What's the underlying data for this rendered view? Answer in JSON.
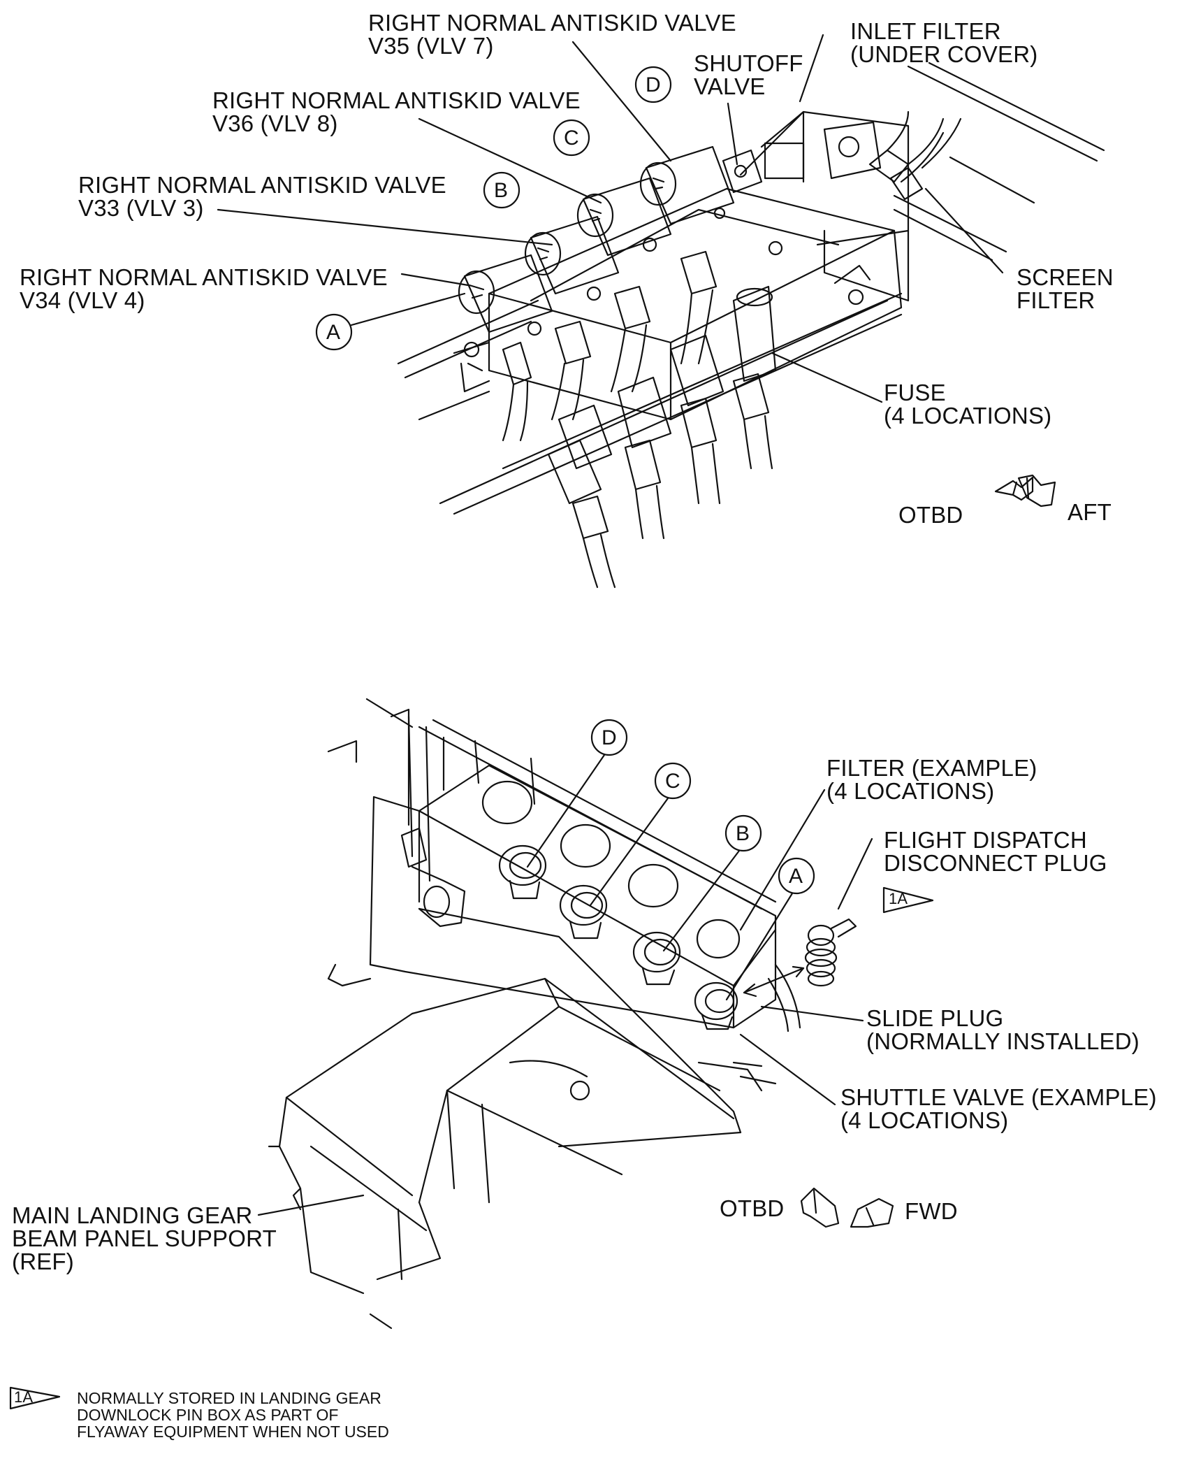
{
  "figure": {
    "top_view": {
      "labels": {
        "valve_v35": [
          "RIGHT NORMAL ANTISKID VALVE",
          "V35 (VLV 7)"
        ],
        "valve_v36": [
          "RIGHT NORMAL ANTISKID VALVE",
          "V36 (VLV 8)"
        ],
        "valve_v33": [
          "RIGHT NORMAL ANTISKID VALVE",
          "V33 (VLV 3)"
        ],
        "valve_v34": [
          "RIGHT NORMAL ANTISKID VALVE",
          "V34 (VLV 4)"
        ],
        "shutoff_valve": [
          "SHUTOFF",
          "VALVE"
        ],
        "inlet_filter": [
          "INLET FILTER",
          "(UNDER COVER)"
        ],
        "screen_filter": [
          "SCREEN",
          "FILTER"
        ],
        "fuse": [
          "FUSE",
          "(4 LOCATIONS)"
        ]
      },
      "callouts": [
        "A",
        "B",
        "C",
        "D"
      ],
      "direction": {
        "left": "OTBD",
        "right": "AFT"
      }
    },
    "bottom_view": {
      "labels": {
        "filter_example": [
          "FILTER (EXAMPLE)",
          "(4 LOCATIONS)"
        ],
        "flight_dispatch_plug": [
          "FLIGHT DISPATCH",
          "DISCONNECT PLUG"
        ],
        "slide_plug": [
          "SLIDE PLUG",
          "(NORMALLY INSTALLED)"
        ],
        "shuttle_valve": [
          "SHUTTLE VALVE (EXAMPLE)",
          "(4 LOCATIONS)"
        ],
        "beam_panel_support": [
          "MAIN LANDING GEAR",
          "BEAM PANEL SUPPORT",
          "(REF)"
        ]
      },
      "callouts": [
        "D",
        "C",
        "B",
        "A"
      ],
      "flag": "1A",
      "direction": {
        "left": "OTBD",
        "right": "FWD"
      }
    },
    "footnote": {
      "flag": "1A",
      "lines": [
        "NORMALLY STORED IN LANDING GEAR",
        "DOWNLOCK PIN BOX AS PART OF",
        "FLYAWAY EQUIPMENT WHEN NOT USED"
      ]
    }
  }
}
